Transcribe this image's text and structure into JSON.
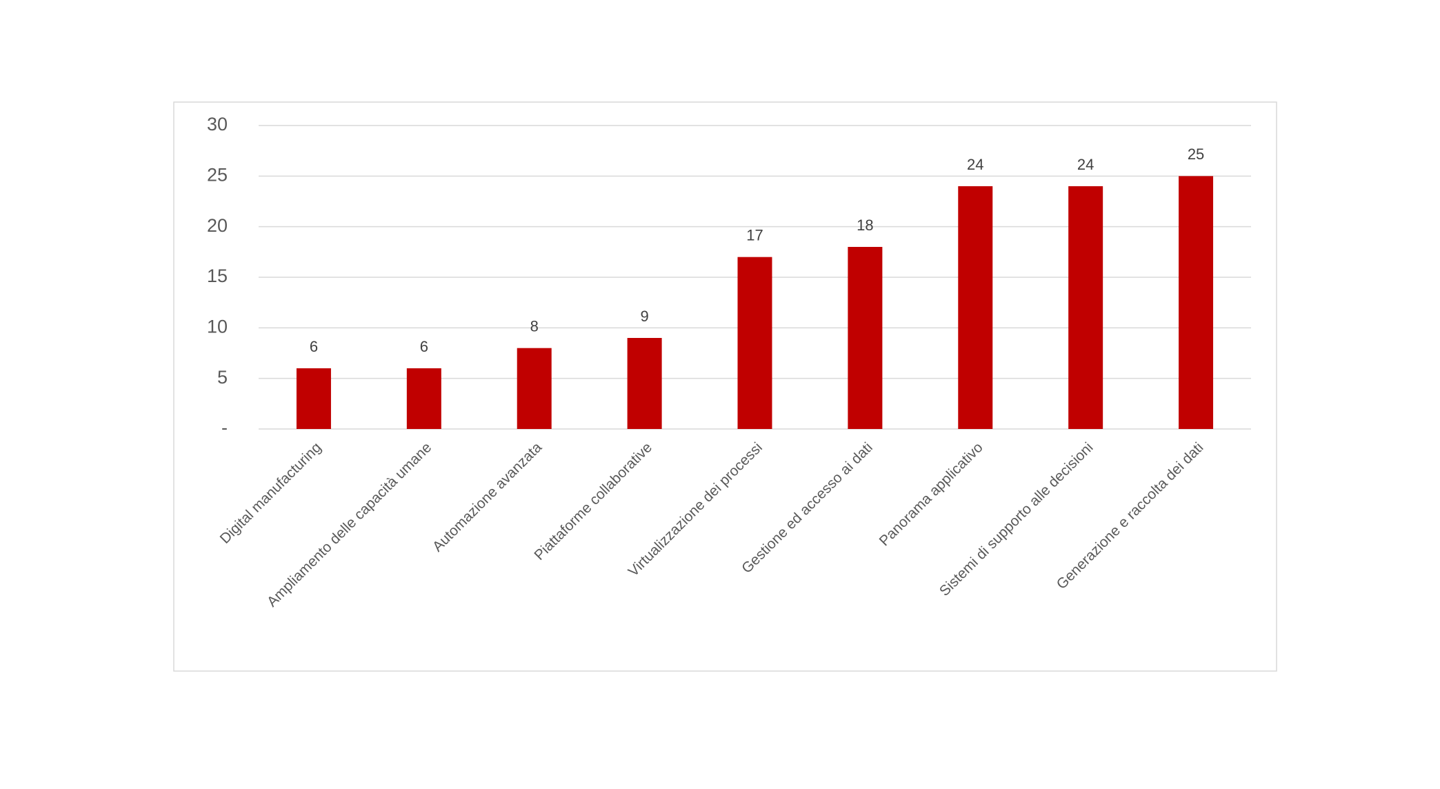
{
  "chart_data": {
    "type": "bar",
    "categories": [
      "Digital manufacturing",
      "Ampliamento delle capacità umane",
      "Automazione avanzata",
      "Piattaforme collaborative",
      "Virtualizzazione dei processi",
      "Gestione ed accesso ai dati",
      "Panorama applicativo",
      "Sistemi di supporto alle decisioni",
      "Generazione e raccolta dei dati"
    ],
    "values": [
      6,
      6,
      8,
      9,
      17,
      18,
      24,
      24,
      25
    ],
    "color": "#c00000",
    "ylim": [
      0,
      30
    ],
    "yticks": [
      {
        "value": 0,
        "label": "-"
      },
      5,
      10,
      15,
      20,
      25,
      30
    ],
    "grid": true
  }
}
